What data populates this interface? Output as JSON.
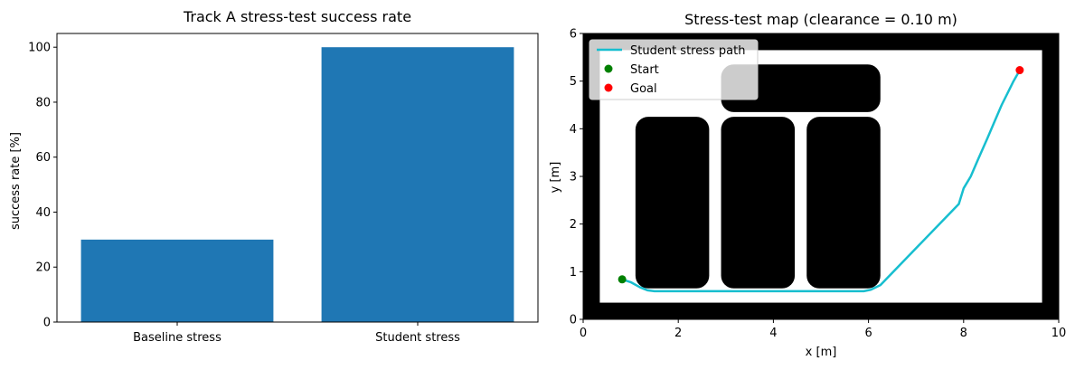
{
  "chart_data": [
    {
      "type": "bar",
      "title": "Track A stress-test success rate",
      "xlabel": "",
      "ylabel": "success rate [%]",
      "categories": [
        "Baseline stress",
        "Student stress"
      ],
      "values": [
        30,
        100
      ],
      "ylim": [
        0,
        105
      ],
      "yticks": [
        0,
        20,
        40,
        60,
        80,
        100
      ],
      "bar_color": "#1f77b4",
      "grid": false
    },
    {
      "type": "line",
      "title": "Stress-test map (clearance = 0.10 m)",
      "xlabel": "x [m]",
      "ylabel": "y [m]",
      "xlim": [
        0,
        10
      ],
      "ylim": [
        0,
        6
      ],
      "xticks": [
        0,
        2,
        4,
        6,
        8,
        10
      ],
      "yticks": [
        0,
        1,
        2,
        3,
        4,
        5,
        6
      ],
      "grid": false,
      "legend_position": "top-left",
      "free_space": {
        "x0": 0.35,
        "x1": 9.65,
        "y0": 0.35,
        "y1": 5.65
      },
      "obstacles": [
        {
          "x0": 1.1,
          "x1": 2.65,
          "y0": 0.65,
          "y1": 4.25
        },
        {
          "x0": 2.9,
          "x1": 4.45,
          "y0": 0.65,
          "y1": 4.25
        },
        {
          "x0": 4.7,
          "x1": 6.25,
          "y0": 0.65,
          "y1": 4.25
        },
        {
          "x0": 2.9,
          "x1": 6.25,
          "y0": 4.35,
          "y1": 5.35
        }
      ],
      "series": [
        {
          "name": "Student stress path",
          "color": "#17becf",
          "x": [
            0.82,
            1.0,
            1.2,
            1.35,
            1.5,
            3.0,
            5.9,
            6.05,
            6.25,
            7.9,
            8.0,
            8.15,
            8.3,
            8.5,
            8.65,
            8.8,
            8.95,
            9.05,
            9.18
          ],
          "y": [
            0.84,
            0.78,
            0.67,
            0.61,
            0.59,
            0.59,
            0.59,
            0.62,
            0.72,
            2.42,
            2.75,
            3.0,
            3.35,
            3.8,
            4.15,
            4.5,
            4.8,
            5.0,
            5.23
          ]
        }
      ],
      "points": [
        {
          "name": "Start",
          "x": 0.82,
          "y": 0.84,
          "color": "#008000"
        },
        {
          "name": "Goal",
          "x": 9.18,
          "y": 5.23,
          "color": "#ff0000"
        }
      ]
    }
  ]
}
